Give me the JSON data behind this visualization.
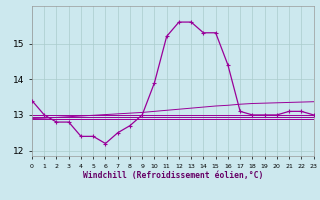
{
  "xlabel": "Windchill (Refroidissement éolien,°C)",
  "background_color": "#cce8ee",
  "grid_color": "#aacccc",
  "line_color": "#990099",
  "hours": [
    0,
    1,
    2,
    3,
    4,
    5,
    6,
    7,
    8,
    9,
    10,
    11,
    12,
    13,
    14,
    15,
    16,
    17,
    18,
    19,
    20,
    21,
    22,
    23
  ],
  "temp": [
    13.4,
    13.0,
    12.8,
    12.8,
    12.4,
    12.4,
    12.2,
    12.5,
    12.7,
    13.0,
    13.9,
    15.2,
    15.6,
    15.6,
    15.3,
    15.3,
    14.4,
    13.1,
    13.0,
    13.0,
    13.0,
    13.1,
    13.1,
    13.0
  ],
  "line2": [
    13.0,
    13.0,
    13.0,
    13.0,
    13.0,
    13.0,
    13.0,
    13.0,
    13.0,
    13.0,
    13.0,
    13.0,
    13.0,
    13.0,
    13.0,
    13.0,
    13.0,
    13.0,
    13.0,
    13.0,
    13.0,
    13.0,
    13.0,
    13.0
  ],
  "line3": [
    12.95,
    12.95,
    12.95,
    12.95,
    12.95,
    12.95,
    12.95,
    12.95,
    12.95,
    12.95,
    12.95,
    12.95,
    12.95,
    12.95,
    12.95,
    12.95,
    12.95,
    12.95,
    12.95,
    12.95,
    12.95,
    12.95,
    12.95,
    12.95
  ],
  "line4": [
    12.9,
    12.9,
    12.9,
    12.9,
    12.9,
    12.9,
    12.9,
    12.9,
    12.9,
    12.9,
    12.9,
    12.9,
    12.9,
    12.9,
    12.9,
    12.9,
    12.9,
    12.9,
    12.9,
    12.9,
    12.9,
    12.9,
    12.9,
    12.9
  ],
  "line5": [
    12.9,
    12.91,
    12.93,
    12.95,
    12.97,
    12.99,
    13.01,
    13.03,
    13.05,
    13.07,
    13.1,
    13.13,
    13.16,
    13.19,
    13.22,
    13.25,
    13.27,
    13.3,
    13.32,
    13.33,
    13.34,
    13.35,
    13.36,
    13.37
  ],
  "ylim": [
    11.85,
    16.05
  ],
  "yticks": [
    12,
    13,
    14,
    15
  ],
  "xlim": [
    0,
    23
  ]
}
